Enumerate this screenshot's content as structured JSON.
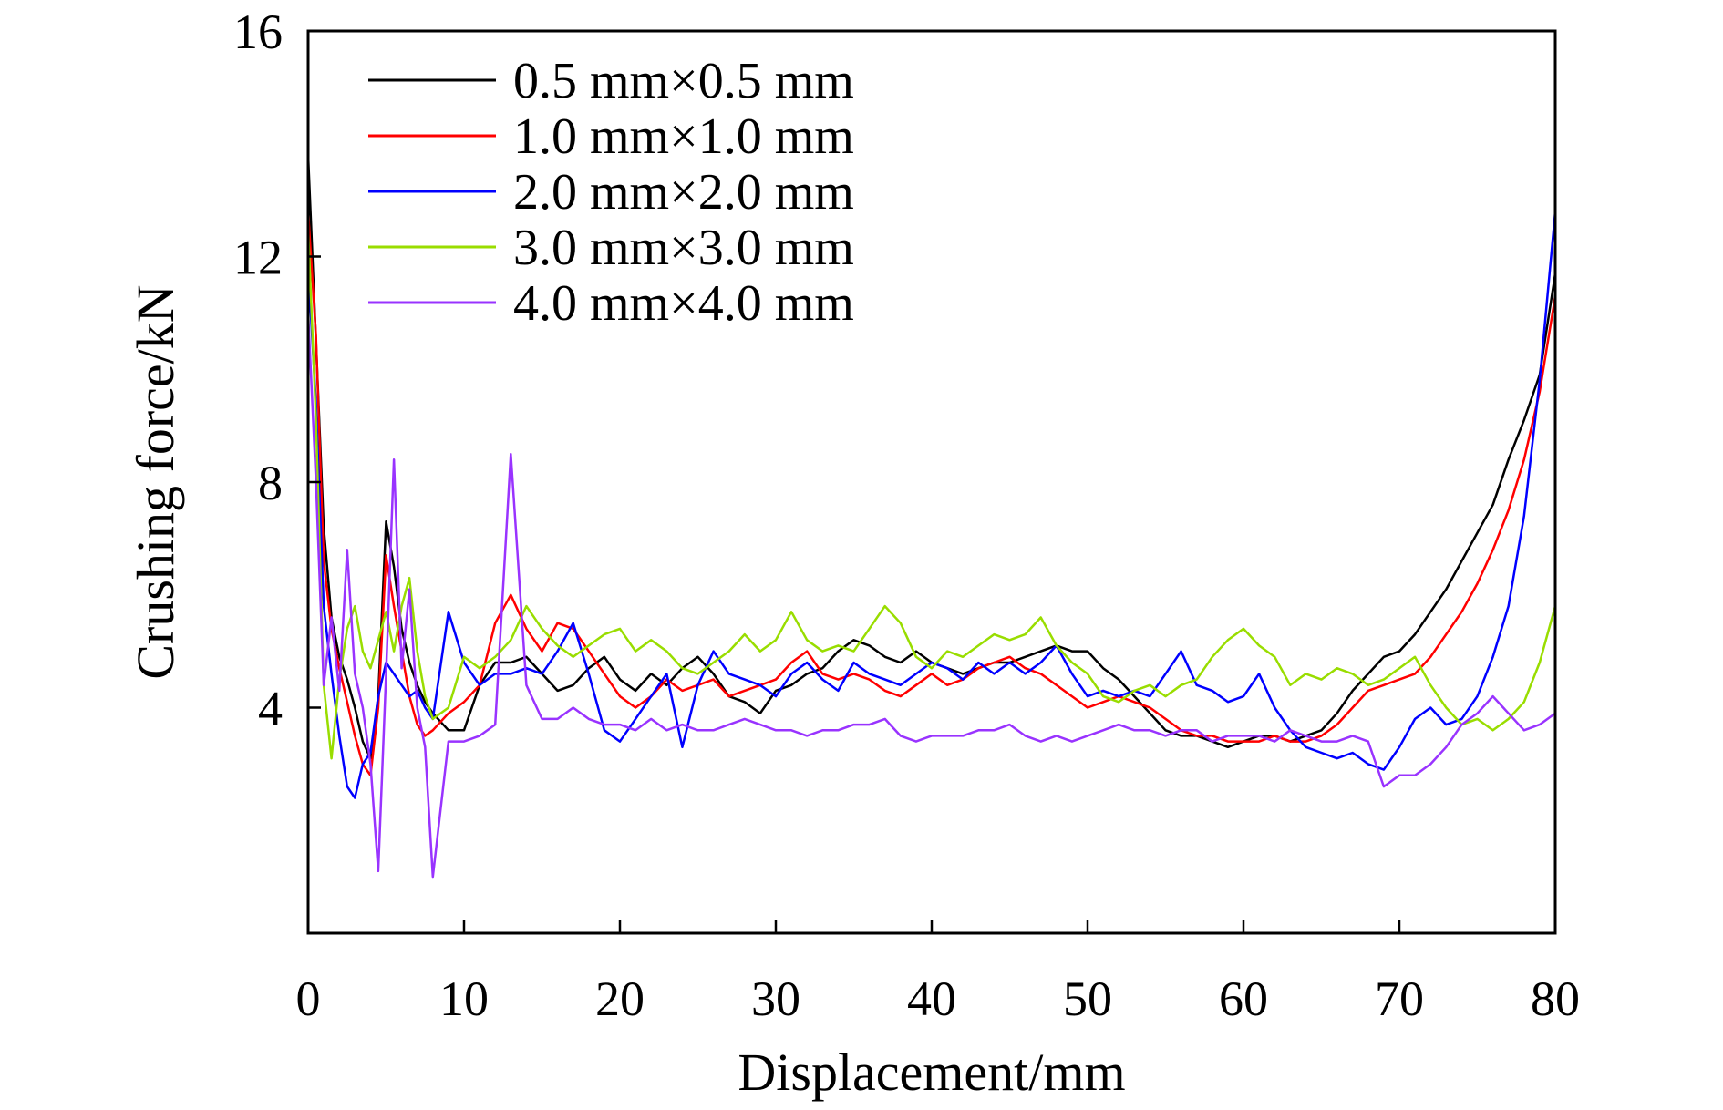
{
  "chart_data": {
    "type": "line",
    "title": "",
    "xlabel": "Displacement/mm",
    "ylabel": "Crushing force/kN",
    "xlim": [
      0,
      80
    ],
    "ylim": [
      0,
      16
    ],
    "xticks": [
      0,
      10,
      20,
      30,
      40,
      50,
      60,
      70,
      80
    ],
    "yticks": [
      4,
      8,
      12,
      16
    ],
    "xtick_labels": [
      "0",
      "10",
      "20",
      "30",
      "40",
      "50",
      "60",
      "70",
      "80"
    ],
    "ytick_labels": [
      "4",
      "8",
      "12",
      "16"
    ],
    "grid": false,
    "legend_position": "top-left",
    "series": [
      {
        "name": "0.5 mm×0.5 mm",
        "color": "#000000",
        "x": [
          0,
          0.5,
          1,
          1.5,
          2,
          2.5,
          3,
          3.5,
          4,
          4.5,
          5,
          5.5,
          6,
          6.5,
          7,
          7.5,
          8,
          9,
          10,
          11,
          12,
          13,
          14,
          15,
          16,
          17,
          18,
          19,
          20,
          21,
          22,
          23,
          24,
          25,
          26,
          27,
          28,
          29,
          30,
          31,
          32,
          33,
          34,
          35,
          36,
          37,
          38,
          39,
          40,
          41,
          42,
          43,
          44,
          45,
          46,
          47,
          48,
          49,
          50,
          51,
          52,
          53,
          54,
          55,
          56,
          57,
          58,
          59,
          60,
          61,
          62,
          63,
          64,
          65,
          66,
          67,
          68,
          69,
          70,
          71,
          72,
          73,
          74,
          75,
          76,
          77,
          78,
          79,
          80
        ],
        "y": [
          13.8,
          10.5,
          7.2,
          5.6,
          4.9,
          4.5,
          4.0,
          3.4,
          3.1,
          4.2,
          7.3,
          6.5,
          5.4,
          4.8,
          4.4,
          4.1,
          3.9,
          3.6,
          3.6,
          4.4,
          4.8,
          4.8,
          4.9,
          4.6,
          4.3,
          4.4,
          4.7,
          4.9,
          4.5,
          4.3,
          4.6,
          4.4,
          4.7,
          4.9,
          4.6,
          4.2,
          4.1,
          3.9,
          4.3,
          4.4,
          4.6,
          4.7,
          5.0,
          5.2,
          5.1,
          4.9,
          4.8,
          5.0,
          4.8,
          4.7,
          4.6,
          4.7,
          4.8,
          4.8,
          4.9,
          5.0,
          5.1,
          5.0,
          5.0,
          4.7,
          4.5,
          4.2,
          3.9,
          3.6,
          3.5,
          3.5,
          3.4,
          3.3,
          3.4,
          3.5,
          3.5,
          3.4,
          3.5,
          3.6,
          3.9,
          4.3,
          4.6,
          4.9,
          5.0,
          5.3,
          5.7,
          6.1,
          6.6,
          7.1,
          7.6,
          8.4,
          9.1,
          9.9,
          11.7
        ]
      },
      {
        "name": "1.0 mm×1.0 mm",
        "color": "#ff0000",
        "x": [
          0,
          0.5,
          1,
          1.5,
          2,
          2.5,
          3,
          3.5,
          4,
          4.5,
          5,
          5.5,
          6,
          6.5,
          7,
          7.5,
          8,
          9,
          10,
          11,
          12,
          13,
          14,
          15,
          16,
          17,
          18,
          19,
          20,
          21,
          22,
          23,
          24,
          25,
          26,
          27,
          28,
          29,
          30,
          31,
          32,
          33,
          34,
          35,
          36,
          37,
          38,
          39,
          40,
          41,
          42,
          43,
          44,
          45,
          46,
          47,
          48,
          49,
          50,
          51,
          52,
          53,
          54,
          55,
          56,
          57,
          58,
          59,
          60,
          61,
          62,
          63,
          64,
          65,
          66,
          67,
          68,
          69,
          70,
          71,
          72,
          73,
          74,
          75,
          76,
          77,
          78,
          79,
          80
        ],
        "y": [
          12.8,
          10.6,
          6.6,
          5.4,
          4.7,
          4.1,
          3.5,
          3.0,
          2.8,
          4.0,
          6.7,
          5.8,
          5.0,
          4.2,
          3.7,
          3.5,
          3.6,
          3.9,
          4.1,
          4.4,
          5.5,
          6.0,
          5.4,
          5.0,
          5.5,
          5.4,
          5.0,
          4.6,
          4.2,
          4.0,
          4.2,
          4.5,
          4.3,
          4.4,
          4.5,
          4.2,
          4.3,
          4.4,
          4.5,
          4.8,
          5.0,
          4.6,
          4.5,
          4.6,
          4.5,
          4.3,
          4.2,
          4.4,
          4.6,
          4.4,
          4.5,
          4.7,
          4.8,
          4.9,
          4.7,
          4.6,
          4.4,
          4.2,
          4.0,
          4.1,
          4.2,
          4.1,
          4.0,
          3.8,
          3.6,
          3.5,
          3.5,
          3.4,
          3.4,
          3.4,
          3.5,
          3.4,
          3.4,
          3.5,
          3.7,
          4.0,
          4.3,
          4.4,
          4.5,
          4.6,
          4.9,
          5.3,
          5.7,
          6.2,
          6.8,
          7.5,
          8.4,
          9.6,
          11.3
        ]
      },
      {
        "name": "2.0 mm×2.0 mm",
        "color": "#0000ff",
        "x": [
          0,
          0.5,
          1,
          1.5,
          2,
          2.5,
          3,
          3.5,
          4,
          4.5,
          5,
          5.5,
          6,
          6.5,
          7,
          7.5,
          8,
          9,
          10,
          11,
          12,
          13,
          14,
          15,
          16,
          17,
          18,
          19,
          20,
          21,
          22,
          23,
          24,
          25,
          26,
          27,
          28,
          29,
          30,
          31,
          32,
          33,
          34,
          35,
          36,
          37,
          38,
          39,
          40,
          41,
          42,
          43,
          44,
          45,
          46,
          47,
          48,
          49,
          50,
          51,
          52,
          53,
          54,
          55,
          56,
          57,
          58,
          59,
          60,
          61,
          62,
          63,
          64,
          65,
          66,
          67,
          68,
          69,
          70,
          71,
          72,
          73,
          74,
          75,
          76,
          77,
          78,
          79,
          80
        ],
        "y": [
          11.8,
          9.4,
          5.8,
          4.6,
          3.5,
          2.6,
          2.4,
          3.0,
          3.2,
          4.2,
          4.8,
          4.6,
          4.4,
          4.2,
          4.3,
          4.0,
          3.8,
          5.7,
          4.8,
          4.4,
          4.6,
          4.6,
          4.7,
          4.6,
          5.0,
          5.5,
          4.6,
          3.6,
          3.4,
          3.8,
          4.2,
          4.6,
          3.3,
          4.4,
          5.0,
          4.6,
          4.5,
          4.4,
          4.2,
          4.6,
          4.8,
          4.5,
          4.3,
          4.8,
          4.6,
          4.5,
          4.4,
          4.6,
          4.8,
          4.7,
          4.5,
          4.8,
          4.6,
          4.8,
          4.6,
          4.8,
          5.1,
          4.6,
          4.2,
          4.3,
          4.2,
          4.3,
          4.2,
          4.6,
          5.0,
          4.4,
          4.3,
          4.1,
          4.2,
          4.6,
          4.0,
          3.6,
          3.3,
          3.2,
          3.1,
          3.2,
          3.0,
          2.9,
          3.3,
          3.8,
          4.0,
          3.7,
          3.8,
          4.2,
          4.9,
          5.8,
          7.4,
          9.8,
          12.8
        ]
      },
      {
        "name": "3.0 mm×3.0 mm",
        "color": "#99dd00",
        "x": [
          0,
          0.5,
          1,
          1.5,
          2,
          2.5,
          3,
          3.5,
          4,
          4.5,
          5,
          5.5,
          6,
          6.5,
          7,
          7.5,
          8,
          9,
          10,
          11,
          12,
          13,
          14,
          15,
          16,
          17,
          18,
          19,
          20,
          21,
          22,
          23,
          24,
          25,
          26,
          27,
          28,
          29,
          30,
          31,
          32,
          33,
          34,
          35,
          36,
          37,
          38,
          39,
          40,
          41,
          42,
          43,
          44,
          45,
          46,
          47,
          48,
          49,
          50,
          51,
          52,
          53,
          54,
          55,
          56,
          57,
          58,
          59,
          60,
          61,
          62,
          63,
          64,
          65,
          66,
          67,
          68,
          69,
          70,
          71,
          72,
          73,
          74,
          75,
          76,
          77,
          78,
          79,
          80
        ],
        "y": [
          12.5,
          9.1,
          4.4,
          3.1,
          4.5,
          5.4,
          5.8,
          5.0,
          4.7,
          5.2,
          5.7,
          5.0,
          5.8,
          6.3,
          5.0,
          4.2,
          3.8,
          4.0,
          4.9,
          4.7,
          4.9,
          5.2,
          5.8,
          5.4,
          5.1,
          4.9,
          5.1,
          5.3,
          5.4,
          5.0,
          5.2,
          5.0,
          4.7,
          4.6,
          4.8,
          5.0,
          5.3,
          5.0,
          5.2,
          5.7,
          5.2,
          5.0,
          5.1,
          5.0,
          5.4,
          5.8,
          5.5,
          4.9,
          4.7,
          5.0,
          4.9,
          5.1,
          5.3,
          5.2,
          5.3,
          5.6,
          5.1,
          4.8,
          4.6,
          4.2,
          4.1,
          4.3,
          4.4,
          4.2,
          4.4,
          4.5,
          4.9,
          5.2,
          5.4,
          5.1,
          4.9,
          4.4,
          4.6,
          4.5,
          4.7,
          4.6,
          4.4,
          4.5,
          4.7,
          4.9,
          4.4,
          4.0,
          3.7,
          3.8,
          3.6,
          3.8,
          4.1,
          4.8,
          5.8
        ]
      },
      {
        "name": "4.0 mm×4.0 mm",
        "color": "#9933ff",
        "x": [
          0,
          0.5,
          1,
          1.5,
          2,
          2.5,
          3,
          3.5,
          4,
          4.5,
          5,
          5.5,
          6,
          6.5,
          7,
          7.5,
          8,
          9,
          10,
          11,
          12,
          13,
          14,
          15,
          16,
          17,
          18,
          19,
          20,
          21,
          22,
          23,
          24,
          25,
          26,
          27,
          28,
          29,
          30,
          31,
          32,
          33,
          34,
          35,
          36,
          37,
          38,
          39,
          40,
          41,
          42,
          43,
          44,
          45,
          46,
          47,
          48,
          49,
          50,
          51,
          52,
          53,
          54,
          55,
          56,
          57,
          58,
          59,
          60,
          61,
          62,
          63,
          64,
          65,
          66,
          67,
          68,
          69,
          70,
          71,
          72,
          73,
          74,
          75,
          76,
          77,
          78,
          79,
          80
        ],
        "y": [
          11.0,
          8.0,
          4.4,
          5.6,
          4.3,
          6.8,
          4.6,
          4.0,
          3.0,
          1.1,
          4.6,
          8.4,
          4.7,
          6.1,
          4.0,
          3.3,
          1.0,
          3.4,
          3.4,
          3.5,
          3.7,
          8.5,
          4.4,
          3.8,
          3.8,
          4.0,
          3.8,
          3.7,
          3.7,
          3.6,
          3.8,
          3.6,
          3.7,
          3.6,
          3.6,
          3.7,
          3.8,
          3.7,
          3.6,
          3.6,
          3.5,
          3.6,
          3.6,
          3.7,
          3.7,
          3.8,
          3.5,
          3.4,
          3.5,
          3.5,
          3.5,
          3.6,
          3.6,
          3.7,
          3.5,
          3.4,
          3.5,
          3.4,
          3.5,
          3.6,
          3.7,
          3.6,
          3.6,
          3.5,
          3.6,
          3.6,
          3.4,
          3.5,
          3.5,
          3.5,
          3.4,
          3.6,
          3.5,
          3.4,
          3.4,
          3.5,
          3.4,
          2.6,
          2.8,
          2.8,
          3.0,
          3.3,
          3.7,
          3.9,
          4.2,
          3.9,
          3.6,
          3.7,
          3.9
        ]
      }
    ]
  }
}
